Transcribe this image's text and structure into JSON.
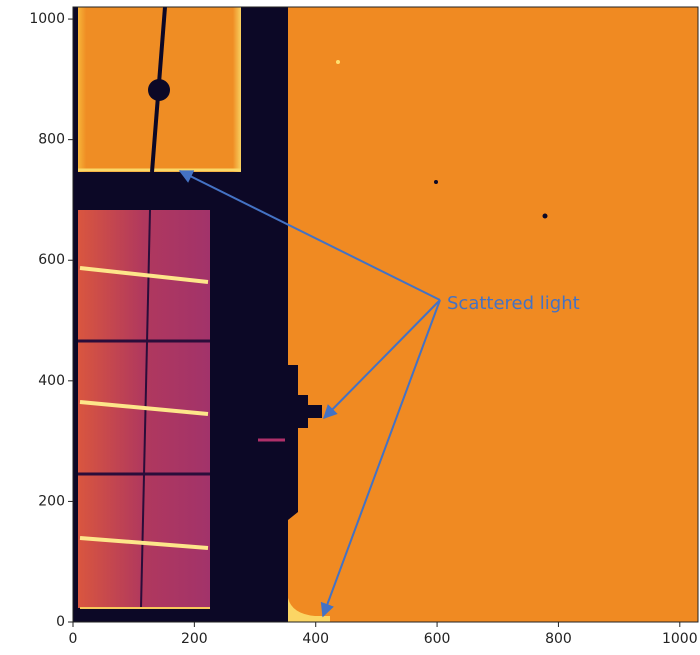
{
  "chart_data": {
    "type": "image",
    "xlim": [
      0,
      1030
    ],
    "ylim": [
      0,
      1020
    ],
    "xticks": [
      0,
      200,
      400,
      600,
      800,
      1000
    ],
    "yticks": [
      0,
      200,
      400,
      600,
      800,
      1000
    ],
    "annotation": "Scattered light",
    "annotation_color": "#4472c4"
  }
}
